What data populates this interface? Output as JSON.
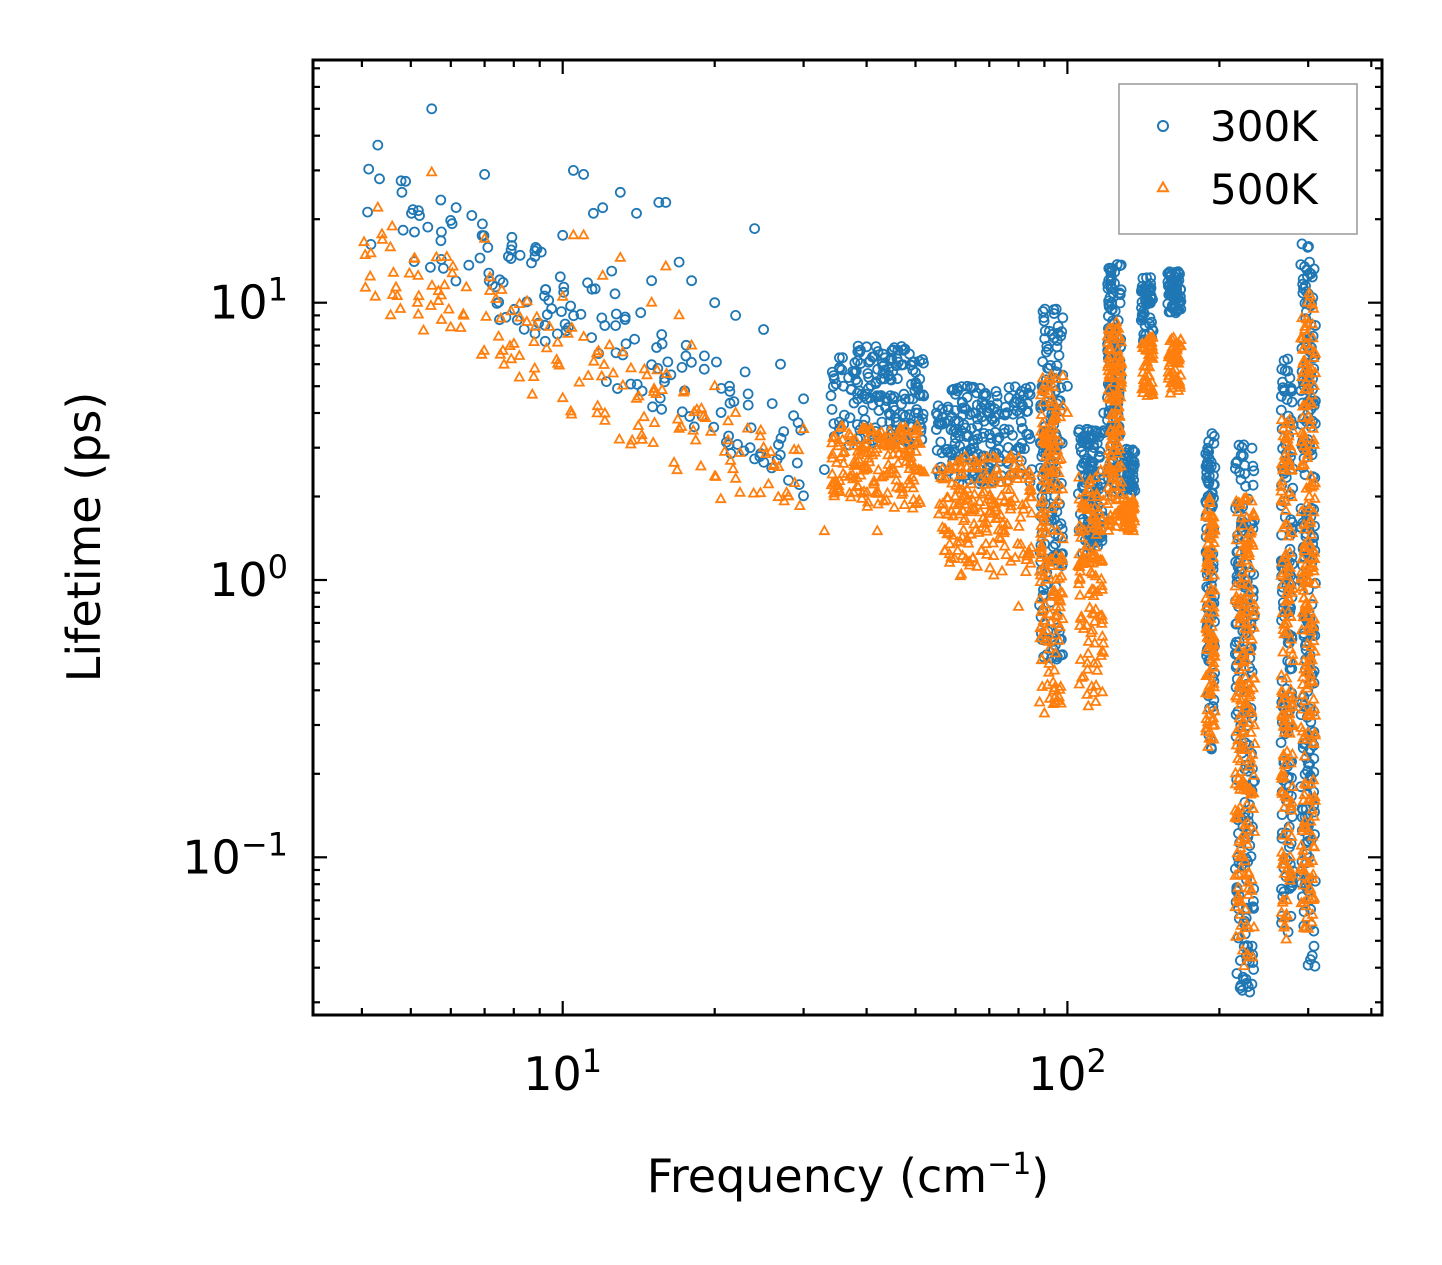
{
  "chart_data": {
    "type": "scatter",
    "xlabel": "Frequency (cm",
    "xlabel_sup": "−1",
    "xlabel_end": ")",
    "ylabel": "Lifetime (ps)",
    "xscale": "log",
    "yscale": "log",
    "xlim": [
      3.2,
      420
    ],
    "ylim": [
      0.027,
      75
    ],
    "x_ticks": [
      {
        "value": 10,
        "base": "10",
        "exp": "1"
      },
      {
        "value": 100,
        "base": "10",
        "exp": "2"
      }
    ],
    "y_ticks": [
      {
        "value": 0.1,
        "base": "10",
        "exp": "−1"
      },
      {
        "value": 1,
        "base": "10",
        "exp": "0"
      },
      {
        "value": 10,
        "base": "10",
        "exp": "1"
      }
    ],
    "legend_position": "top-right",
    "series": [
      {
        "name": "300K",
        "marker": "circle",
        "color": "#1f77b4",
        "anchors": [
          [
            4.3,
            37
          ],
          [
            5.5,
            50
          ],
          [
            7.0,
            29
          ],
          [
            7.9,
            15.5
          ],
          [
            10.0,
            17.5
          ],
          [
            10.5,
            30
          ],
          [
            11.0,
            29
          ],
          [
            11.5,
            21
          ],
          [
            12.0,
            22
          ],
          [
            12.5,
            13
          ],
          [
            13.0,
            25
          ],
          [
            14.0,
            21
          ],
          [
            15.0,
            12
          ],
          [
            15.5,
            23
          ],
          [
            16.0,
            23
          ],
          [
            17.0,
            14
          ],
          [
            18.0,
            12
          ],
          [
            20.0,
            10
          ],
          [
            22.0,
            9
          ],
          [
            24.0,
            18.5
          ],
          [
            25.0,
            8
          ],
          [
            27.0,
            6
          ],
          [
            30.0,
            4.5
          ],
          [
            33.0,
            2.5
          ],
          [
            36.0,
            5
          ],
          [
            40.0,
            4.5
          ],
          [
            45.0,
            4.5
          ],
          [
            50.0,
            4
          ],
          [
            55.0,
            4
          ],
          [
            60.0,
            3.5
          ],
          [
            65.0,
            3.2
          ],
          [
            70.0,
            4
          ],
          [
            75.0,
            3.5
          ],
          [
            80.0,
            3
          ],
          [
            85.0,
            2.5
          ],
          [
            90.0,
            2.5
          ],
          [
            93.0,
            3
          ],
          [
            100.0,
            5
          ],
          [
            110.0,
            2
          ],
          [
            118.0,
            4
          ],
          [
            125.0,
            6
          ],
          [
            135.0,
            2.5
          ],
          [
            145.0,
            10
          ],
          [
            160.0,
            11
          ],
          [
            190.0,
            2
          ],
          [
            220.0,
            1
          ],
          [
            280.0,
            1
          ],
          [
            300.0,
            5
          ]
        ],
        "clusters": [
          {
            "x": [
              4,
              30
            ],
            "y": [
              3,
              25
            ],
            "trend": true,
            "count": 160
          },
          {
            "x": [
              34,
              52
            ],
            "y": [
              3,
              7
            ],
            "count": 180
          },
          {
            "x": [
              55,
              85
            ],
            "y": [
              2.2,
              5
            ],
            "count": 200
          },
          {
            "x": [
              88,
              98
            ],
            "y": [
              0.5,
              9.5
            ],
            "count": 170
          },
          {
            "x": [
              105,
              118
            ],
            "y": [
              1.2,
              3.5
            ],
            "count": 120
          },
          {
            "x": [
              120,
              128
            ],
            "y": [
              2,
              14
            ],
            "count": 130
          },
          {
            "x": [
              128,
              136
            ],
            "y": [
              2,
              3
            ],
            "count": 50
          },
          {
            "x": [
              140,
              148
            ],
            "y": [
              7,
              12.5
            ],
            "count": 50
          },
          {
            "x": [
              158,
              168
            ],
            "y": [
              9,
              13
            ],
            "count": 70
          },
          {
            "x": [
              188,
              196
            ],
            "y": [
              0.24,
              3.4
            ],
            "count": 100
          },
          {
            "x": [
              215,
              235
            ],
            "y": [
              0.032,
              3.2
            ],
            "count": 200
          },
          {
            "x": [
              265,
              280
            ],
            "y": [
              0.05,
              6.8
            ],
            "count": 150
          },
          {
            "x": [
              290,
              310
            ],
            "y": [
              0.04,
              17
            ],
            "count": 220
          }
        ]
      },
      {
        "name": "500K",
        "marker": "triangle",
        "color": "#ff7f0e",
        "anchors": [
          [
            4.3,
            22
          ],
          [
            5.5,
            29.5
          ],
          [
            7.0,
            17
          ],
          [
            7.9,
            9.3
          ],
          [
            10.0,
            10.5
          ],
          [
            10.5,
            17.5
          ],
          [
            11.0,
            17.5
          ],
          [
            12.0,
            12.5
          ],
          [
            13.0,
            14.5
          ],
          [
            14.0,
            4.5
          ],
          [
            15.0,
            10
          ],
          [
            16.0,
            13.5
          ],
          [
            17.0,
            9
          ],
          [
            18.0,
            7
          ],
          [
            20.0,
            5
          ],
          [
            22.0,
            4
          ],
          [
            25.0,
            3
          ],
          [
            28.0,
            2
          ],
          [
            30.0,
            3.5
          ],
          [
            33.0,
            1.5
          ],
          [
            40.0,
            2.5
          ],
          [
            42.0,
            1.5
          ],
          [
            45.0,
            2.5
          ],
          [
            50.0,
            2.5
          ],
          [
            55.0,
            2.5
          ],
          [
            60.0,
            2
          ],
          [
            65.0,
            1.2
          ],
          [
            70.0,
            2
          ],
          [
            75.0,
            1.5
          ],
          [
            80.0,
            0.8
          ],
          [
            90.0,
            0.33
          ],
          [
            92.0,
            5
          ],
          [
            100.0,
            4
          ],
          [
            110.0,
            0.35
          ],
          [
            115.0,
            1.5
          ],
          [
            125.0,
            8.5
          ],
          [
            135.0,
            1.5
          ],
          [
            145.0,
            5
          ],
          [
            160.0,
            4.7
          ],
          [
            190.0,
            0.25
          ],
          [
            220.0,
            0.1
          ],
          [
            280.0,
            0.3
          ],
          [
            300.0,
            1
          ]
        ],
        "clusters": [
          {
            "x": [
              4,
              30
            ],
            "y": [
              2,
              15
            ],
            "trend": true,
            "count": 160
          },
          {
            "x": [
              34,
              52
            ],
            "y": [
              1.8,
              3.6
            ],
            "count": 180
          },
          {
            "x": [
              55,
              85
            ],
            "y": [
              1,
              2.8
            ],
            "count": 200
          },
          {
            "x": [
              88,
              98
            ],
            "y": [
              0.33,
              5.5
            ],
            "count": 170
          },
          {
            "x": [
              105,
              118
            ],
            "y": [
              0.35,
              2.5
            ],
            "count": 120
          },
          {
            "x": [
              120,
              128
            ],
            "y": [
              1.5,
              8.5
            ],
            "count": 130
          },
          {
            "x": [
              128,
              136
            ],
            "y": [
              1.5,
              2
            ],
            "count": 50
          },
          {
            "x": [
              140,
              148
            ],
            "y": [
              4.5,
              7.5
            ],
            "count": 50
          },
          {
            "x": [
              158,
              168
            ],
            "y": [
              4.8,
              7.5
            ],
            "count": 60
          },
          {
            "x": [
              188,
              196
            ],
            "y": [
              0.25,
              2
            ],
            "count": 100
          },
          {
            "x": [
              215,
              235
            ],
            "y": [
              0.04,
              2
            ],
            "count": 200
          },
          {
            "x": [
              265,
              280
            ],
            "y": [
              0.05,
              4.2
            ],
            "count": 150
          },
          {
            "x": [
              290,
              310
            ],
            "y": [
              0.05,
              11
            ],
            "count": 220
          }
        ]
      }
    ]
  }
}
